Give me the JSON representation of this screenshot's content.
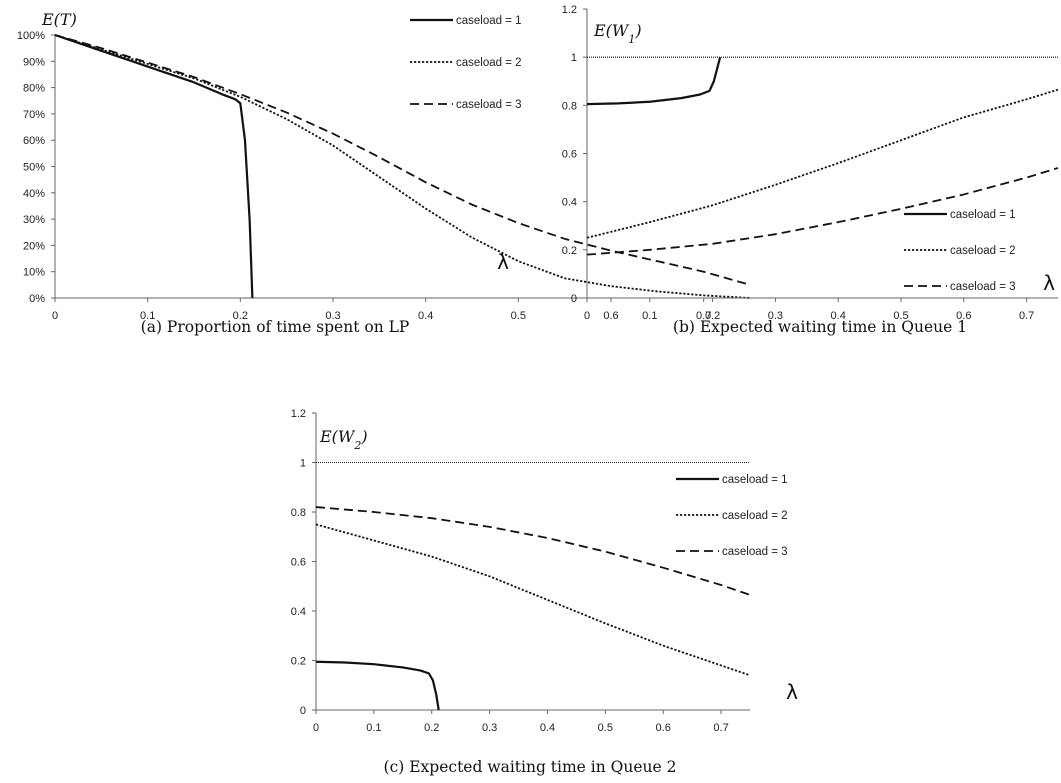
{
  "chart_data": [
    {
      "id": "a",
      "type": "line",
      "caption": "(a) Proportion of time spent on LP",
      "ylabel": "E(T)",
      "xlabel": "λ",
      "xlim": [
        0,
        0.75
      ],
      "ylim": [
        0,
        1
      ],
      "x_ticks": [
        "0",
        "0.1",
        "0.2",
        "0.3",
        "0.4",
        "0.5",
        "0.6",
        "0.7"
      ],
      "y_ticks": [
        "0%",
        "10%",
        "20%",
        "30%",
        "40%",
        "50%",
        "60%",
        "70%",
        "80%",
        "90%",
        "100%"
      ],
      "reference_line": null,
      "legend_position": "top-right",
      "series": [
        {
          "name": "caseload = 1",
          "style": "solid",
          "points": [
            [
              0,
              1.0
            ],
            [
              0.05,
              0.94
            ],
            [
              0.1,
              0.88
            ],
            [
              0.15,
              0.82
            ],
            [
              0.18,
              0.775
            ],
            [
              0.195,
              0.755
            ],
            [
              0.2,
              0.74
            ],
            [
              0.205,
              0.6
            ],
            [
              0.21,
              0.3
            ],
            [
              0.213,
              0.0
            ]
          ]
        },
        {
          "name": "caseload = 2",
          "style": "dotted",
          "points": [
            [
              0,
              1.0
            ],
            [
              0.05,
              0.945
            ],
            [
              0.1,
              0.89
            ],
            [
              0.15,
              0.835
            ],
            [
              0.2,
              0.765
            ],
            [
              0.25,
              0.68
            ],
            [
              0.3,
              0.58
            ],
            [
              0.35,
              0.46
            ],
            [
              0.4,
              0.34
            ],
            [
              0.45,
              0.23
            ],
            [
              0.5,
              0.14
            ],
            [
              0.55,
              0.075
            ],
            [
              0.6,
              0.045
            ],
            [
              0.65,
              0.025
            ],
            [
              0.7,
              0.01
            ],
            [
              0.75,
              0.0
            ]
          ]
        },
        {
          "name": "caseload = 3",
          "style": "dashed",
          "points": [
            [
              0,
              1.0
            ],
            [
              0.05,
              0.95
            ],
            [
              0.1,
              0.895
            ],
            [
              0.15,
              0.84
            ],
            [
              0.2,
              0.775
            ],
            [
              0.25,
              0.705
            ],
            [
              0.3,
              0.625
            ],
            [
              0.35,
              0.535
            ],
            [
              0.4,
              0.44
            ],
            [
              0.45,
              0.355
            ],
            [
              0.5,
              0.285
            ],
            [
              0.55,
              0.225
            ],
            [
              0.6,
              0.18
            ],
            [
              0.65,
              0.14
            ],
            [
              0.7,
              0.1
            ],
            [
              0.75,
              0.05
            ]
          ]
        }
      ]
    },
    {
      "id": "b",
      "type": "line",
      "caption": "(b) Expected waiting time in Queue 1",
      "ylabel": "E(W1)",
      "xlabel": "λ",
      "xlim": [
        0,
        0.75
      ],
      "ylim": [
        0,
        1.2
      ],
      "x_ticks": [
        "0",
        "0.1",
        "0.2",
        "0.3",
        "0.4",
        "0.5",
        "0.6",
        "0.7"
      ],
      "y_ticks": [
        "0",
        "0.2",
        "0.4",
        "0.6",
        "0.8",
        "1",
        "1.2"
      ],
      "reference_line": 1,
      "legend_position": "bottom-right",
      "series": [
        {
          "name": "caseload = 1",
          "style": "solid",
          "points": [
            [
              0,
              0.805
            ],
            [
              0.05,
              0.808
            ],
            [
              0.1,
              0.815
            ],
            [
              0.15,
              0.83
            ],
            [
              0.18,
              0.845
            ],
            [
              0.195,
              0.86
            ],
            [
              0.202,
              0.9
            ],
            [
              0.208,
              0.96
            ],
            [
              0.212,
              1.0
            ]
          ]
        },
        {
          "name": "caseload = 2",
          "style": "dotted",
          "points": [
            [
              0,
              0.25
            ],
            [
              0.1,
              0.315
            ],
            [
              0.2,
              0.385
            ],
            [
              0.3,
              0.47
            ],
            [
              0.4,
              0.56
            ],
            [
              0.5,
              0.655
            ],
            [
              0.6,
              0.75
            ],
            [
              0.7,
              0.825
            ],
            [
              0.75,
              0.865
            ]
          ]
        },
        {
          "name": "caseload = 3",
          "style": "dashed",
          "points": [
            [
              0,
              0.18
            ],
            [
              0.1,
              0.2
            ],
            [
              0.2,
              0.225
            ],
            [
              0.3,
              0.265
            ],
            [
              0.4,
              0.315
            ],
            [
              0.5,
              0.37
            ],
            [
              0.6,
              0.43
            ],
            [
              0.7,
              0.5
            ],
            [
              0.75,
              0.54
            ]
          ]
        }
      ]
    },
    {
      "id": "c",
      "type": "line",
      "caption": "(c) Expected waiting time in Queue 2",
      "ylabel": "E(W2)",
      "xlabel": "λ",
      "xlim": [
        0,
        0.75
      ],
      "ylim": [
        0,
        1.2
      ],
      "x_ticks": [
        "0",
        "0.1",
        "0.2",
        "0.3",
        "0.4",
        "0.5",
        "0.6",
        "0.7"
      ],
      "y_ticks": [
        "0",
        "0.2",
        "0.4",
        "0.6",
        "0.8",
        "1",
        "1.2"
      ],
      "reference_line": 1,
      "legend_position": "top-right",
      "series": [
        {
          "name": "caseload = 1",
          "style": "solid",
          "points": [
            [
              0,
              0.195
            ],
            [
              0.05,
              0.192
            ],
            [
              0.1,
              0.185
            ],
            [
              0.15,
              0.172
            ],
            [
              0.18,
              0.16
            ],
            [
              0.195,
              0.148
            ],
            [
              0.202,
              0.12
            ],
            [
              0.208,
              0.06
            ],
            [
              0.212,
              0.0
            ]
          ]
        },
        {
          "name": "caseload = 2",
          "style": "dotted",
          "points": [
            [
              0,
              0.75
            ],
            [
              0.1,
              0.685
            ],
            [
              0.2,
              0.62
            ],
            [
              0.3,
              0.54
            ],
            [
              0.4,
              0.445
            ],
            [
              0.5,
              0.35
            ],
            [
              0.6,
              0.26
            ],
            [
              0.7,
              0.18
            ],
            [
              0.75,
              0.14
            ]
          ]
        },
        {
          "name": "caseload = 3",
          "style": "dashed",
          "points": [
            [
              0,
              0.82
            ],
            [
              0.1,
              0.8
            ],
            [
              0.2,
              0.775
            ],
            [
              0.3,
              0.74
            ],
            [
              0.4,
              0.695
            ],
            [
              0.5,
              0.64
            ],
            [
              0.6,
              0.575
            ],
            [
              0.7,
              0.505
            ],
            [
              0.75,
              0.465
            ]
          ]
        }
      ]
    }
  ]
}
